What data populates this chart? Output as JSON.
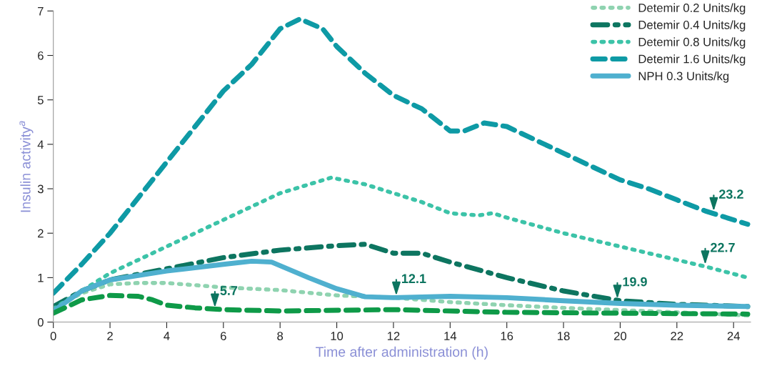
{
  "chart_data": {
    "type": "line",
    "xlabel": "Time after administration (h)",
    "ylabel": "Insulin activity$^{a}$",
    "xlim": [
      0,
      24.6
    ],
    "ylim": [
      0,
      7
    ],
    "xticks": [
      0,
      2,
      4,
      6,
      8,
      10,
      12,
      14,
      16,
      18,
      20,
      22,
      24
    ],
    "yticks": [
      0,
      1,
      2,
      3,
      4,
      5,
      6,
      7
    ],
    "grid": false,
    "legend": "top right",
    "series": [
      {
        "name": "Detemir 0.2 Units/kg",
        "color": "#8fd3b0",
        "line_style": "dotted",
        "x": [
          0,
          1,
          2,
          3,
          4,
          6,
          8,
          10,
          12,
          14,
          16,
          18,
          20,
          22,
          24.5
        ],
        "values": [
          0.3,
          0.65,
          0.85,
          0.88,
          0.88,
          0.78,
          0.72,
          0.6,
          0.55,
          0.45,
          0.38,
          0.32,
          0.27,
          0.22,
          0.15
        ]
      },
      {
        "name": "Detemir 0.4 Units/kg",
        "color": "#0d7560",
        "line_style": "dashdot",
        "x": [
          0,
          1,
          2,
          4,
          6,
          8,
          10,
          11,
          12,
          13,
          14,
          16,
          18,
          20,
          22,
          24.5
        ],
        "values": [
          0.35,
          0.7,
          0.95,
          1.2,
          1.45,
          1.62,
          1.72,
          1.75,
          1.55,
          1.55,
          1.35,
          1.0,
          0.7,
          0.48,
          0.4,
          0.35
        ]
      },
      {
        "name": "Detemir 0.8 Units/kg",
        "color": "#3cc3a8",
        "line_style": "dotted",
        "x": [
          0,
          1,
          2,
          4,
          6,
          8,
          9.8,
          11,
          12,
          13,
          14,
          15,
          15.5,
          16,
          18,
          20,
          22,
          23,
          24.5
        ],
        "values": [
          0.3,
          0.7,
          1.1,
          1.7,
          2.3,
          2.9,
          3.25,
          3.1,
          2.9,
          2.7,
          2.45,
          2.4,
          2.45,
          2.35,
          2.0,
          1.7,
          1.4,
          1.25,
          1.0
        ]
      },
      {
        "name": "Detemir 1.6 Units/kg",
        "color": "#0e9aa5",
        "line_style": "dashed",
        "x": [
          0,
          1,
          2,
          3,
          4,
          5,
          6,
          7,
          8,
          8.7,
          9.5,
          10,
          11,
          12,
          13,
          14,
          14.5,
          15.2,
          16,
          17,
          18,
          19,
          20,
          21,
          22,
          23,
          24.5
        ],
        "values": [
          0.65,
          1.3,
          2.0,
          2.8,
          3.6,
          4.4,
          5.2,
          5.8,
          6.6,
          6.82,
          6.6,
          6.2,
          5.6,
          5.1,
          4.8,
          4.3,
          4.3,
          4.48,
          4.4,
          4.1,
          3.8,
          3.5,
          3.2,
          3.0,
          2.75,
          2.5,
          2.2
        ]
      },
      {
        "name": "NPH 0.3 Units/kg",
        "color": "#4fb0cf",
        "line_style": "solid",
        "x": [
          0,
          1,
          2,
          4,
          6,
          7,
          7.7,
          9,
          10,
          11,
          12,
          14,
          16,
          18,
          20,
          22,
          24.5
        ],
        "values": [
          0.25,
          0.7,
          0.95,
          1.15,
          1.3,
          1.37,
          1.35,
          1.0,
          0.75,
          0.57,
          0.55,
          0.58,
          0.55,
          0.48,
          0.42,
          0.38,
          0.35
        ]
      },
      {
        "color": "#0e9a48",
        "line_style": "dashed",
        "x": [
          0,
          1,
          2,
          3,
          3.5,
          4,
          5,
          6,
          8,
          12,
          16,
          20,
          24.5
        ],
        "values": [
          0.2,
          0.5,
          0.6,
          0.58,
          0.5,
          0.38,
          0.32,
          0.28,
          0.25,
          0.28,
          0.22,
          0.2,
          0.18
        ]
      }
    ],
    "annotations": [
      {
        "text": "5.7",
        "x": 5.7,
        "y": 0.28
      },
      {
        "text": "12.1",
        "x": 12.1,
        "y": 0.55
      },
      {
        "text": "19.9",
        "x": 19.9,
        "y": 0.48
      },
      {
        "text": "22.7",
        "x": 23.0,
        "y": 1.25
      },
      {
        "text": "23.2",
        "x": 23.3,
        "y": 2.45
      }
    ]
  }
}
